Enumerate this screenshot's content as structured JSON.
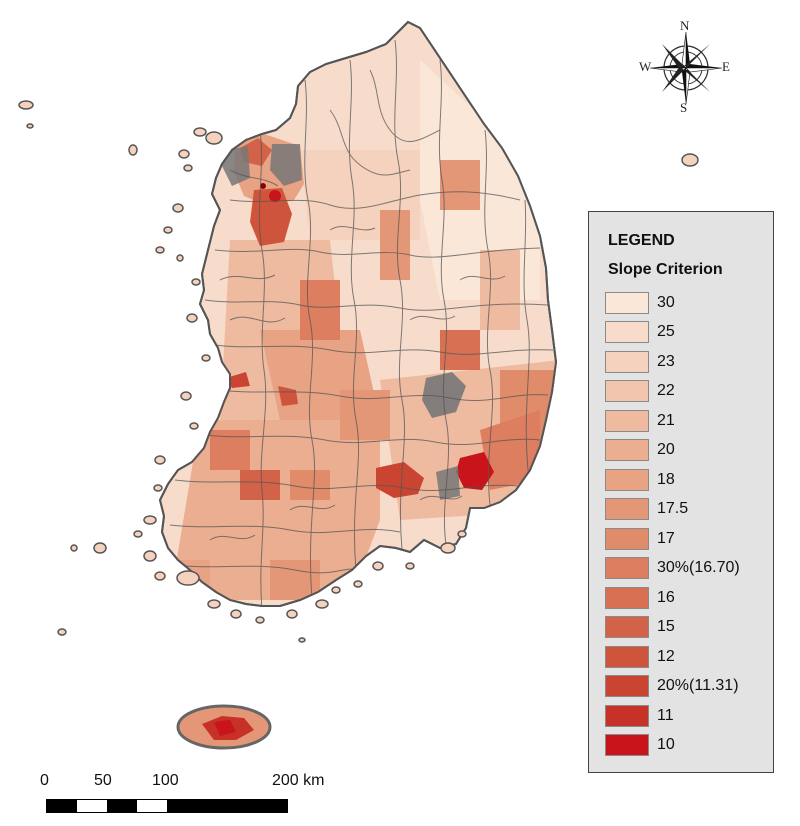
{
  "legend": {
    "title": "LEGEND",
    "subtitle": "Slope Criterion",
    "items": [
      {
        "label": "30",
        "color": "#fbe7d8"
      },
      {
        "label": "25",
        "color": "#f8dccb"
      },
      {
        "label": "23",
        "color": "#f5d2bd"
      },
      {
        "label": "22",
        "color": "#f2c6ae"
      },
      {
        "label": "21",
        "color": "#efbba0"
      },
      {
        "label": "20",
        "color": "#ebae91"
      },
      {
        "label": "18",
        "color": "#e8a384"
      },
      {
        "label": "17.5",
        "color": "#e49777"
      },
      {
        "label": "17",
        "color": "#e08b6a"
      },
      {
        "label": "30%(16.70)",
        "color": "#dc7e5f"
      },
      {
        "label": "16",
        "color": "#d87153"
      },
      {
        "label": "15",
        "color": "#d36348"
      },
      {
        "label": "12",
        "color": "#cf543c"
      },
      {
        "label": "20%(11.31)",
        "color": "#c94532"
      },
      {
        "label": "11",
        "color": "#c63227"
      },
      {
        "label": "10",
        "color": "#c8141a"
      }
    ]
  },
  "compass": {
    "n": "N",
    "s": "S",
    "e": "E",
    "w": "W"
  },
  "scalebar": {
    "ticks": [
      "0",
      "50",
      "100",
      "200 km"
    ]
  },
  "colors": {
    "boundary": "#555555",
    "urban_gray": "#777777"
  }
}
